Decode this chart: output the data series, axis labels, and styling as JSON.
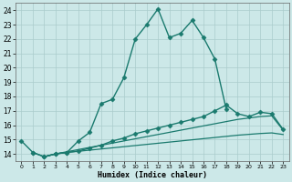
{
  "xlabel": "Humidex (Indice chaleur)",
  "bg_color": "#cce8e8",
  "grid_color": "#aacccc",
  "line_color": "#1a7a6e",
  "xlim": [
    -0.5,
    23.5
  ],
  "ylim": [
    13.5,
    24.5
  ],
  "xticks": [
    0,
    1,
    2,
    3,
    4,
    5,
    6,
    7,
    8,
    9,
    10,
    11,
    12,
    13,
    14,
    15,
    16,
    17,
    18,
    19,
    20,
    21,
    22,
    23
  ],
  "yticks": [
    14,
    15,
    16,
    17,
    18,
    19,
    20,
    21,
    22,
    23,
    24
  ],
  "series": [
    {
      "x": [
        0,
        1,
        2,
        3,
        4,
        5,
        6,
        7,
        8,
        9,
        10,
        11,
        12,
        13,
        14,
        15,
        16,
        17,
        18
      ],
      "y": [
        14.9,
        14.1,
        13.8,
        14.0,
        14.1,
        14.9,
        15.5,
        17.5,
        17.8,
        19.3,
        22.0,
        23.0,
        24.1,
        22.1,
        22.4,
        23.3,
        22.1,
        20.6,
        17.1
      ],
      "marker": "D",
      "markersize": 2.5,
      "linewidth": 1.0
    },
    {
      "x": [
        1,
        2,
        3,
        4,
        5,
        6,
        7,
        8,
        9,
        10,
        11,
        12,
        13,
        14,
        15,
        16,
        17,
        18,
        19,
        20,
        21,
        22,
        23
      ],
      "y": [
        14.1,
        13.8,
        14.0,
        14.1,
        14.2,
        14.4,
        14.6,
        14.9,
        15.1,
        15.4,
        15.6,
        15.8,
        16.0,
        16.2,
        16.4,
        16.6,
        17.0,
        17.4,
        16.8,
        16.6,
        16.9,
        16.8,
        15.7
      ],
      "marker": "D",
      "markersize": 2.5,
      "linewidth": 1.0
    },
    {
      "x": [
        2,
        3,
        4,
        5,
        6,
        7,
        8,
        9,
        10,
        11,
        12,
        13,
        14,
        15,
        16,
        17,
        18,
        19,
        20,
        21,
        22,
        23
      ],
      "y": [
        13.8,
        14.0,
        14.15,
        14.3,
        14.45,
        14.6,
        14.75,
        14.9,
        15.05,
        15.2,
        15.35,
        15.5,
        15.65,
        15.8,
        15.95,
        16.1,
        16.25,
        16.4,
        16.5,
        16.6,
        16.65,
        15.65
      ],
      "marker": null,
      "markersize": 0,
      "linewidth": 0.9
    },
    {
      "x": [
        2,
        3,
        4,
        5,
        6,
        7,
        8,
        9,
        10,
        11,
        12,
        13,
        14,
        15,
        16,
        17,
        18,
        19,
        20,
        21,
        22,
        23
      ],
      "y": [
        13.8,
        14.0,
        14.1,
        14.18,
        14.26,
        14.34,
        14.42,
        14.5,
        14.58,
        14.66,
        14.74,
        14.82,
        14.9,
        14.98,
        15.06,
        15.14,
        15.22,
        15.3,
        15.36,
        15.42,
        15.46,
        15.35
      ],
      "marker": null,
      "markersize": 0,
      "linewidth": 0.9
    }
  ]
}
